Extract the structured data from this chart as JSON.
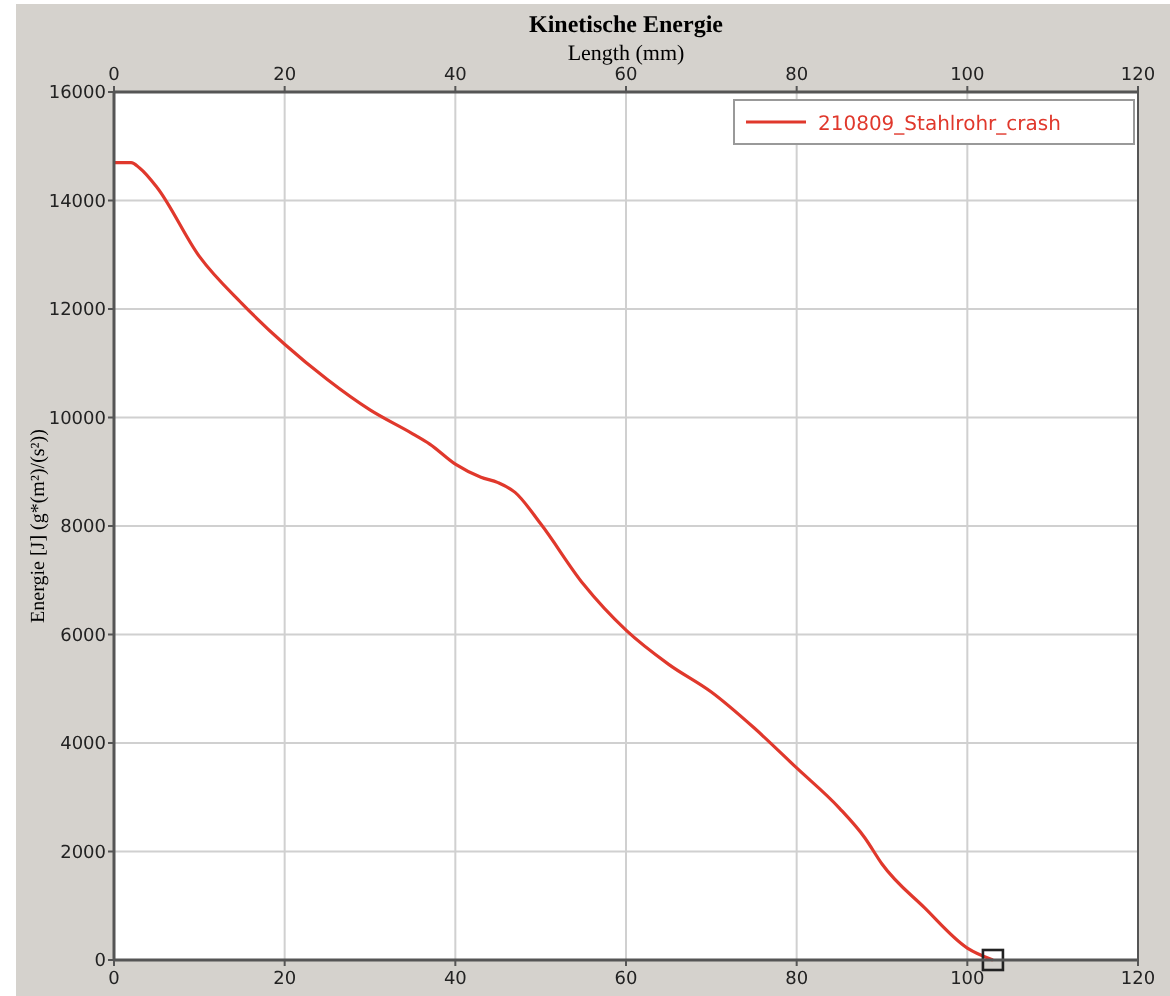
{
  "chart_data": {
    "type": "line",
    "title": "Kinetische Energie",
    "x2label": "Length (mm)",
    "ylabel": "Energie [J] (g*(m²)/(s²))",
    "xlim": [
      0,
      120
    ],
    "xticks": [
      0,
      20,
      40,
      60,
      80,
      100,
      120
    ],
    "x2lim": [
      0,
      120
    ],
    "x2ticks": [
      0,
      20,
      40,
      60,
      80,
      100,
      120
    ],
    "ylim": [
      0,
      16000
    ],
    "yticks": [
      0,
      2000,
      4000,
      6000,
      8000,
      10000,
      12000,
      14000,
      16000
    ],
    "grid": true,
    "legend": "top right",
    "series": [
      {
        "name": "210809_Stahlrohr_crash",
        "color": "#e0382c",
        "marker": "none",
        "x": [
          0,
          2,
          3,
          5,
          10,
          15,
          20,
          25,
          30,
          35,
          37,
          40,
          43,
          45,
          47,
          50,
          55,
          60,
          65,
          70,
          75,
          80,
          85,
          88,
          90,
          95,
          100,
          103
        ],
        "values": [
          14700,
          14700,
          14600,
          14250,
          12970,
          12100,
          11350,
          10700,
          10140,
          9700,
          9510,
          9140,
          8900,
          8800,
          8620,
          8040,
          6930,
          6080,
          5450,
          4940,
          4280,
          3540,
          2800,
          2250,
          1770,
          960,
          220,
          0
        ]
      },
      {
        "type": "scatter",
        "color": "#222222",
        "marker": "square",
        "x": [
          103
        ],
        "values": [
          0
        ]
      }
    ]
  }
}
